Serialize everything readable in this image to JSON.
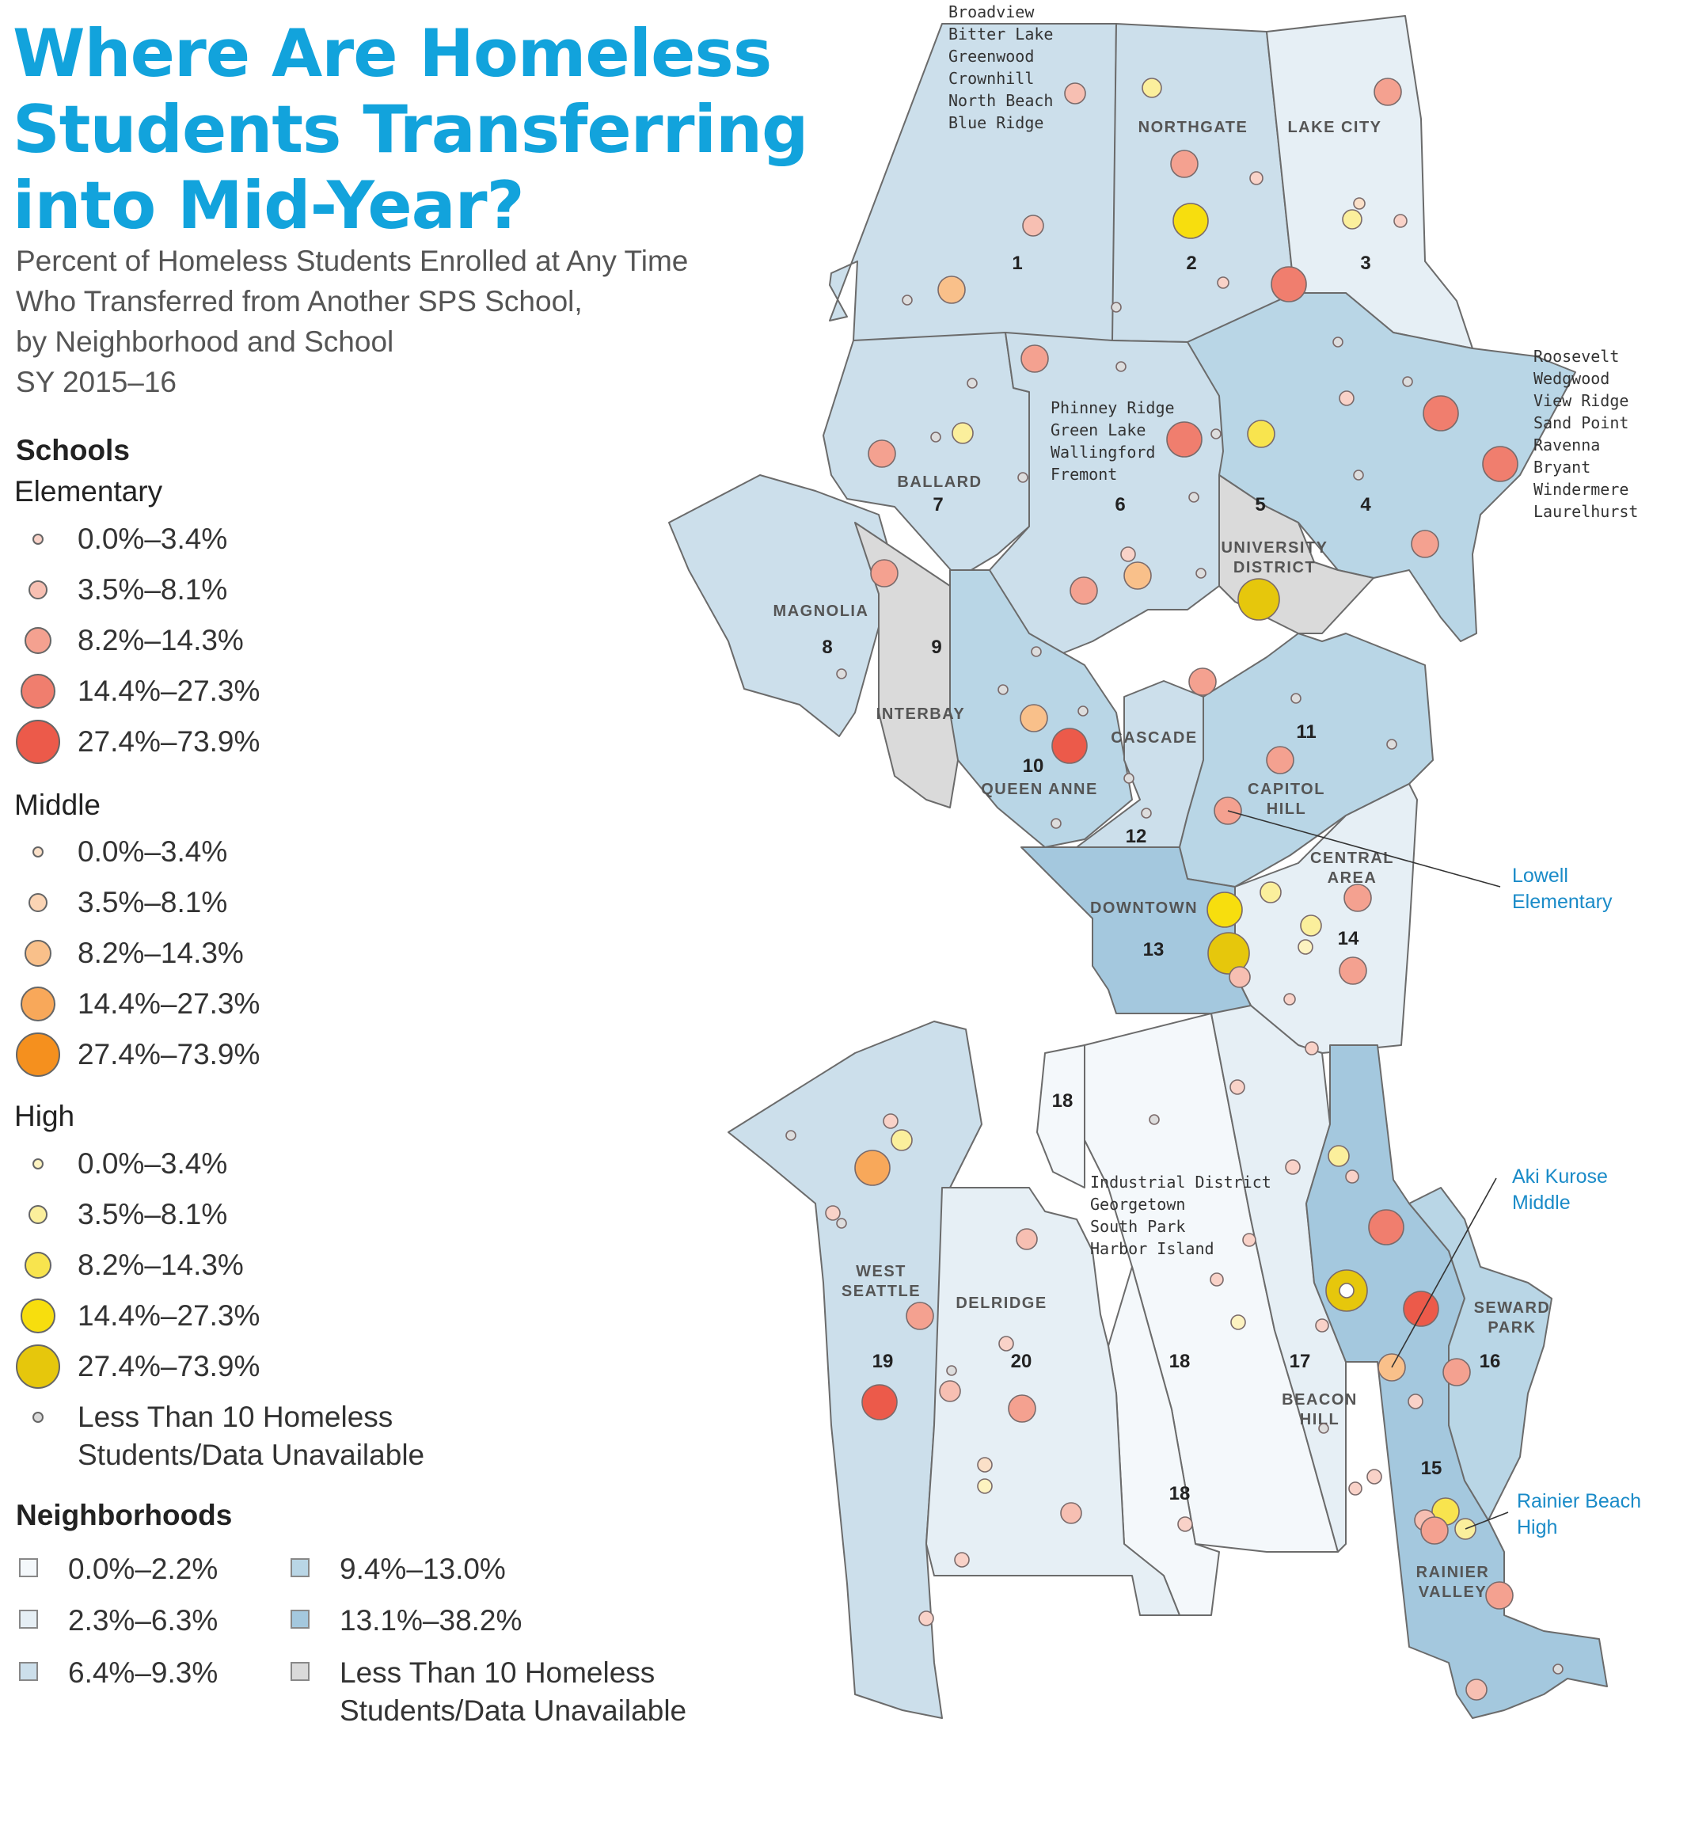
{
  "title": [
    "Where Are Homeless",
    "Students Transferring",
    "into Mid-Year?"
  ],
  "subtitle": [
    "Percent of Homeless Students Enrolled at Any Time",
    "Who Transferred from Another SPS School,",
    "by Neighborhood and School",
    "SY 2015–16"
  ],
  "legend": {
    "schools_heading": "Schools",
    "groups": [
      {
        "key": "elementary",
        "label": "Elementary",
        "color": "#f07e6e",
        "ranges": [
          "0.0%–3.4%",
          "3.5%–8.1%",
          "8.2%–14.3%",
          "14.4%–27.3%",
          "27.4%–73.9%"
        ],
        "fills": [
          "#f9d2c8",
          "#f7bfb2",
          "#f4a190",
          "#f07e6e",
          "#ec5a4a"
        ]
      },
      {
        "key": "middle",
        "label": "Middle",
        "color": "#f7a04a",
        "ranges": [
          "0.0%–3.4%",
          "3.5%–8.1%",
          "8.2%–14.3%",
          "14.4%–27.3%",
          "27.4%–73.9%"
        ],
        "fills": [
          "#fbe0c8",
          "#fbd4b4",
          "#f9c08a",
          "#f8a85a",
          "#f5901e"
        ]
      },
      {
        "key": "high",
        "label": "High",
        "color": "#f5d816",
        "ranges": [
          "0.0%–3.4%",
          "3.5%–8.1%",
          "8.2%–14.3%",
          "14.4%–27.3%",
          "27.4%–73.9%"
        ],
        "fills": [
          "#fdf3c0",
          "#fbef9c",
          "#f8e44e",
          "#f7de0e",
          "#e6c70c"
        ]
      }
    ],
    "no_data_school": "Less Than 10 Homeless Students/Data Unavailable",
    "neighborhoods_heading": "Neighborhoods",
    "neighborhood_ranges": [
      {
        "label": "0.0%–2.2%",
        "color": "#f4f8fb"
      },
      {
        "label": "2.3%–6.3%",
        "color": "#e6eff5"
      },
      {
        "label": "6.4%–9.3%",
        "color": "#ccdfeb"
      },
      {
        "label": "9.4%–13.0%",
        "color": "#b9d6e6"
      },
      {
        "label": "13.1%–38.2%",
        "color": "#a4c8de"
      },
      {
        "label": "Less Than 10 Homeless Students/Data Unavailable",
        "color": "#dadada"
      }
    ]
  },
  "map": {
    "area_names": {
      "northgate": "NORTHGATE",
      "lake_city": "LAKE CITY",
      "ballard": "BALLARD",
      "university_district": [
        "UNIVERSITY",
        "DISTRICT"
      ],
      "magnolia": "MAGNOLIA",
      "interbay": "INTERBAY",
      "cascade": "CASCADE",
      "queen_anne": "QUEEN ANNE",
      "capitol_hill": [
        "CAPITOL",
        "HILL"
      ],
      "central_area": [
        "CENTRAL",
        "AREA"
      ],
      "downtown": "DOWNTOWN",
      "west_seattle": [
        "WEST",
        "SEATTLE"
      ],
      "delridge": "DELRIDGE",
      "seward_park": [
        "SEWARD",
        "PARK"
      ],
      "beacon_hill": [
        "BEACON",
        "HILL"
      ],
      "rainier_valley": [
        "RAINIER",
        "VALLEY"
      ]
    },
    "region_numbers": [
      "1",
      "2",
      "3",
      "4",
      "5",
      "6",
      "7",
      "8",
      "9",
      "10",
      "11",
      "12",
      "13",
      "14",
      "15",
      "16",
      "17",
      "18",
      "18",
      "18",
      "19",
      "20"
    ],
    "region1_list": [
      "Broadview",
      "Bitter Lake",
      "Greenwood",
      "Crownhill",
      "North Beach",
      "Blue Ridge"
    ],
    "region4_list": [
      "Roosevelt",
      "Wedgwood",
      "View Ridge",
      "Sand Point",
      "Ravenna",
      "Bryant",
      "Windermere",
      "Laurelhurst"
    ],
    "region6_list": [
      "Phinney Ridge",
      "Green Lake",
      "Wallingford",
      "Fremont"
    ],
    "region18_list": [
      "Industrial District",
      "Georgetown",
      "South Park",
      "Harbor Island"
    ],
    "callouts": [
      {
        "lines": [
          "Lowell",
          "Elementary"
        ]
      },
      {
        "lines": [
          "Aki Kurose",
          "Middle"
        ]
      },
      {
        "lines": [
          "Rainier Beach",
          "High"
        ]
      }
    ]
  }
}
